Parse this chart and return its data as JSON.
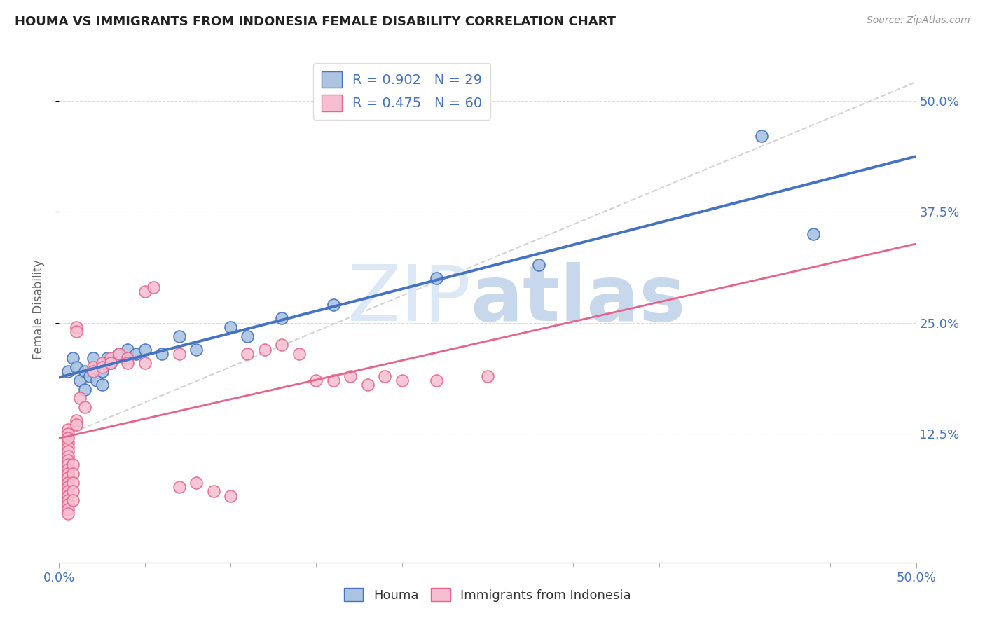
{
  "title": "HOUMA VS IMMIGRANTS FROM INDONESIA FEMALE DISABILITY CORRELATION CHART",
  "source": "Source: ZipAtlas.com",
  "ylabel": "Female Disability",
  "watermark_zip": "ZIP",
  "watermark_atlas": "atlas",
  "legend_blue_label": "Houma",
  "legend_pink_label": "Immigrants from Indonesia",
  "blue_R": 0.902,
  "blue_N": 29,
  "pink_R": 0.475,
  "pink_N": 60,
  "xlim": [
    0.0,
    0.5
  ],
  "ylim": [
    -0.02,
    0.55
  ],
  "xtick_vals": [
    0.0,
    0.5
  ],
  "xtick_labels": [
    "0.0%",
    "50.0%"
  ],
  "ytick_labels": [
    "12.5%",
    "25.0%",
    "37.5%",
    "50.0%"
  ],
  "ytick_vals": [
    0.125,
    0.25,
    0.375,
    0.5
  ],
  "blue_scatter": [
    [
      0.005,
      0.195
    ],
    [
      0.008,
      0.21
    ],
    [
      0.01,
      0.2
    ],
    [
      0.012,
      0.185
    ],
    [
      0.015,
      0.195
    ],
    [
      0.015,
      0.175
    ],
    [
      0.018,
      0.19
    ],
    [
      0.02,
      0.21
    ],
    [
      0.02,
      0.195
    ],
    [
      0.022,
      0.185
    ],
    [
      0.025,
      0.18
    ],
    [
      0.025,
      0.195
    ],
    [
      0.028,
      0.21
    ],
    [
      0.03,
      0.205
    ],
    [
      0.035,
      0.215
    ],
    [
      0.04,
      0.22
    ],
    [
      0.045,
      0.215
    ],
    [
      0.05,
      0.22
    ],
    [
      0.06,
      0.215
    ],
    [
      0.07,
      0.235
    ],
    [
      0.08,
      0.22
    ],
    [
      0.1,
      0.245
    ],
    [
      0.11,
      0.235
    ],
    [
      0.13,
      0.255
    ],
    [
      0.16,
      0.27
    ],
    [
      0.22,
      0.3
    ],
    [
      0.28,
      0.315
    ],
    [
      0.41,
      0.46
    ],
    [
      0.44,
      0.35
    ]
  ],
  "pink_scatter": [
    [
      0.005,
      0.115
    ],
    [
      0.005,
      0.11
    ],
    [
      0.005,
      0.105
    ],
    [
      0.005,
      0.1
    ],
    [
      0.005,
      0.095
    ],
    [
      0.005,
      0.09
    ],
    [
      0.005,
      0.085
    ],
    [
      0.005,
      0.08
    ],
    [
      0.005,
      0.075
    ],
    [
      0.005,
      0.07
    ],
    [
      0.005,
      0.065
    ],
    [
      0.005,
      0.06
    ],
    [
      0.005,
      0.055
    ],
    [
      0.005,
      0.05
    ],
    [
      0.005,
      0.045
    ],
    [
      0.005,
      0.04
    ],
    [
      0.005,
      0.035
    ],
    [
      0.005,
      0.13
    ],
    [
      0.005,
      0.125
    ],
    [
      0.005,
      0.12
    ],
    [
      0.008,
      0.09
    ],
    [
      0.008,
      0.08
    ],
    [
      0.008,
      0.07
    ],
    [
      0.008,
      0.06
    ],
    [
      0.008,
      0.05
    ],
    [
      0.01,
      0.14
    ],
    [
      0.01,
      0.135
    ],
    [
      0.01,
      0.245
    ],
    [
      0.01,
      0.24
    ],
    [
      0.012,
      0.165
    ],
    [
      0.015,
      0.155
    ],
    [
      0.02,
      0.2
    ],
    [
      0.02,
      0.195
    ],
    [
      0.025,
      0.205
    ],
    [
      0.025,
      0.2
    ],
    [
      0.03,
      0.21
    ],
    [
      0.03,
      0.205
    ],
    [
      0.035,
      0.215
    ],
    [
      0.04,
      0.21
    ],
    [
      0.04,
      0.205
    ],
    [
      0.05,
      0.205
    ],
    [
      0.05,
      0.285
    ],
    [
      0.055,
      0.29
    ],
    [
      0.07,
      0.215
    ],
    [
      0.07,
      0.065
    ],
    [
      0.08,
      0.07
    ],
    [
      0.09,
      0.06
    ],
    [
      0.1,
      0.055
    ],
    [
      0.11,
      0.215
    ],
    [
      0.12,
      0.22
    ],
    [
      0.13,
      0.225
    ],
    [
      0.14,
      0.215
    ],
    [
      0.15,
      0.185
    ],
    [
      0.16,
      0.185
    ],
    [
      0.17,
      0.19
    ],
    [
      0.18,
      0.18
    ],
    [
      0.19,
      0.19
    ],
    [
      0.2,
      0.185
    ],
    [
      0.22,
      0.185
    ],
    [
      0.25,
      0.19
    ]
  ],
  "blue_color": "#aac4e2",
  "blue_edge_color": "#4472c4",
  "pink_color": "#f7bdd0",
  "pink_edge_color": "#e8638a",
  "blue_line_color": "#4472c4",
  "pink_line_color": "#e8638a",
  "gray_dash_color": "#c8c8c8",
  "background_color": "#ffffff",
  "grid_color": "#cccccc",
  "title_color": "#222222",
  "axis_label_color": "#666666",
  "right_axis_color": "#4472c4",
  "watermark_color": "#dce8f5",
  "source_color": "#999999"
}
